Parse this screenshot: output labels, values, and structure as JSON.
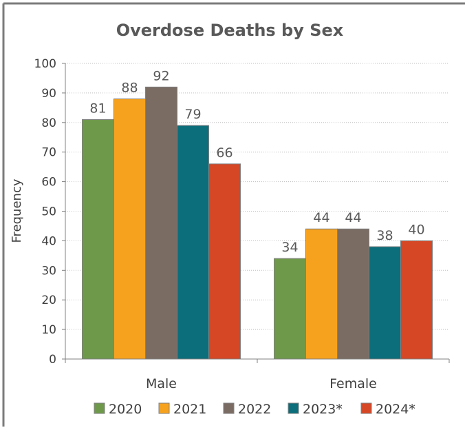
{
  "chart_data": {
    "type": "bar",
    "title": "Overdose Deaths by Sex",
    "xlabel": "",
    "ylabel": "Frequency",
    "ylim": [
      0,
      100
    ],
    "yticks": [
      0,
      10,
      20,
      30,
      40,
      50,
      60,
      70,
      80,
      90,
      100
    ],
    "grid": true,
    "legend_position": "bottom",
    "categories": [
      "Male",
      "Female"
    ],
    "series": [
      {
        "name": "2020",
        "values": [
          81,
          34
        ],
        "color": "#6e994b"
      },
      {
        "name": "2021",
        "values": [
          88,
          44
        ],
        "color": "#f6a21e"
      },
      {
        "name": "2022",
        "values": [
          92,
          44
        ],
        "color": "#7a6c63"
      },
      {
        "name": "2023*",
        "values": [
          79,
          38
        ],
        "color": "#0b6e7a"
      },
      {
        "name": "2024*",
        "values": [
          66,
          40
        ],
        "color": "#d54725"
      }
    ]
  },
  "colors": {
    "frame_border": "#7b7b7b",
    "title_text": "#595959",
    "axis_text": "#404040",
    "gridline": "#bfbfbf",
    "bar_outline": "#808080"
  }
}
